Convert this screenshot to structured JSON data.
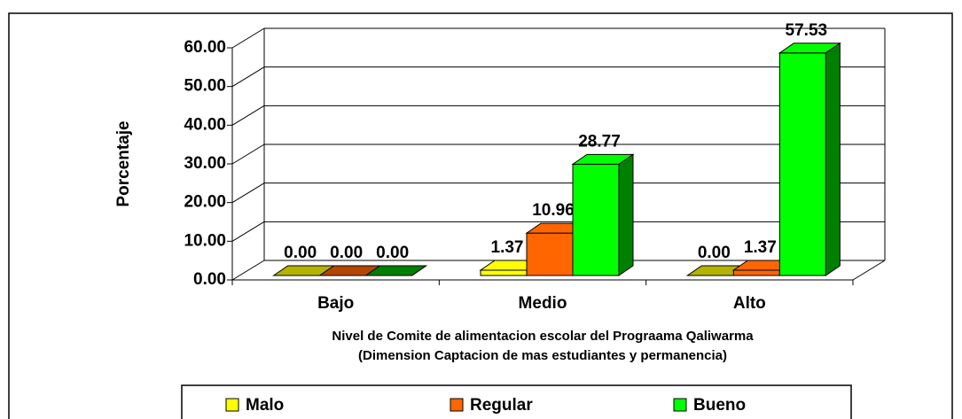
{
  "chart_data": {
    "type": "bar3d",
    "categories": [
      "Bajo",
      "Medio",
      "Alto"
    ],
    "series": [
      {
        "name": "Malo",
        "color": "#ffff00",
        "side_color": "#b3b300",
        "values": [
          0,
          1.37,
          0
        ],
        "value_labels": [
          "0.00",
          "1.37",
          "0.00"
        ]
      },
      {
        "name": "Regular",
        "color": "#ff6600",
        "side_color": "#b34700",
        "values": [
          0,
          10.96,
          1.37
        ],
        "value_labels": [
          "0.00",
          "10.96",
          "1.37"
        ]
      },
      {
        "name": "Bueno",
        "color": "#00ff00",
        "side_color": "#008000",
        "values": [
          0,
          28.77,
          57.53
        ],
        "value_labels": [
          "0.00",
          "28.77",
          "57.53"
        ]
      }
    ],
    "ylabel": "Porcentaje",
    "xlabel": [
      "Nivel de Comite de alimentacion escolar del Prograama Qaliwarma",
      "(Dimension Captacion de mas estudiantes y permanencia)"
    ],
    "ylim": [
      0,
      60
    ],
    "yticks": [
      {
        "value": 0,
        "label": "0.00"
      },
      {
        "value": 10,
        "label": "10.00"
      },
      {
        "value": 20,
        "label": "20.00"
      },
      {
        "value": 30,
        "label": "30.00"
      },
      {
        "value": 40,
        "label": "40.00"
      },
      {
        "value": 50,
        "label": "50.00"
      },
      {
        "value": 60,
        "label": "60.00"
      }
    ],
    "grid": true,
    "legend": "bottom"
  }
}
